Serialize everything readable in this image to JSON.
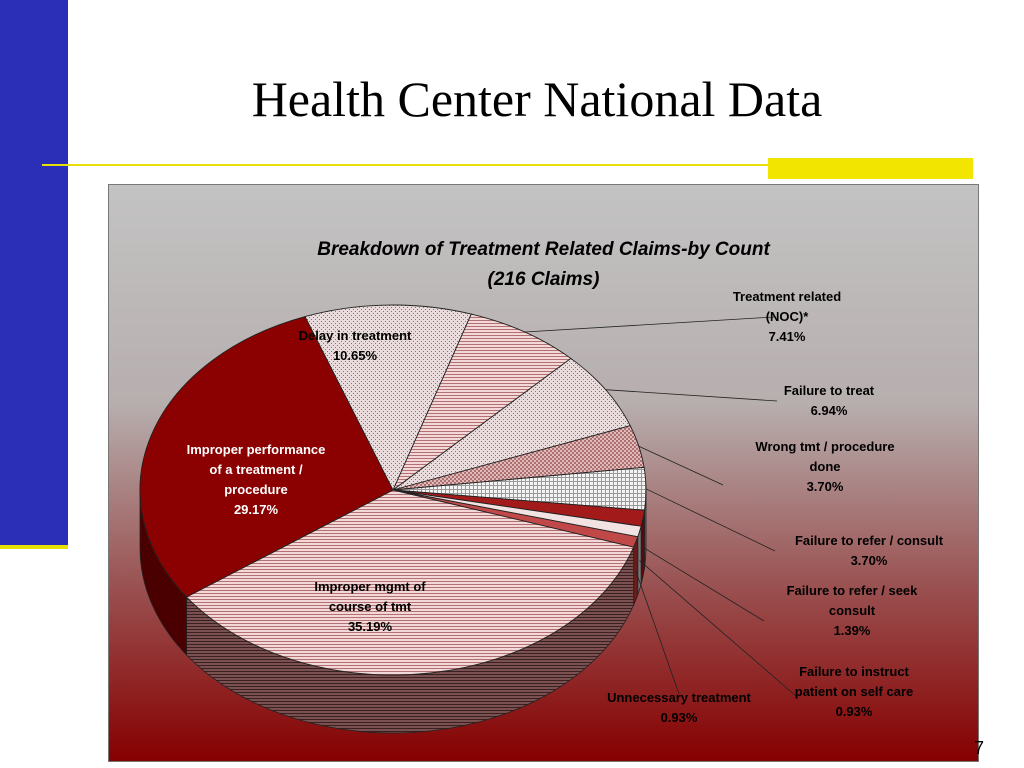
{
  "slide": {
    "title": "Health Center National Data",
    "page_number": "7"
  },
  "colors": {
    "accent_blue": "#2b2fb8",
    "accent_yellow": "#f2e600",
    "dark_red": "#8b0000"
  },
  "chart_data": {
    "type": "pie",
    "title": "Breakdown of Treatment Related Claims-by Count",
    "subtitle": "(216 Claims)",
    "slices": [
      {
        "label": "Treatment related (NOC)*",
        "value": 7.41,
        "display": "7.41%"
      },
      {
        "label": "Failure to treat",
        "value": 6.94,
        "display": "6.94%"
      },
      {
        "label": "Wrong tmt / procedure done",
        "value": 3.7,
        "display": "3.70%"
      },
      {
        "label": "Failure to refer / consult",
        "value": 3.7,
        "display": "3.70%"
      },
      {
        "label": "Failure to refer / seek consult",
        "value": 1.39,
        "display": "1.39%"
      },
      {
        "label": "Failure to instruct patient on self care",
        "value": 0.93,
        "display": "0.93%"
      },
      {
        "label": "Unnecessary treatment",
        "value": 0.93,
        "display": "0.93%"
      },
      {
        "label": "Improper mgmt of course of tmt",
        "value": 35.19,
        "display": "35.19%"
      },
      {
        "label": "Improper performance of a treatment / procedure",
        "value": 29.17,
        "display": "29.17%"
      },
      {
        "label": "Delay in treatment",
        "value": 10.65,
        "display": "10.65%"
      }
    ],
    "legend": "none"
  }
}
